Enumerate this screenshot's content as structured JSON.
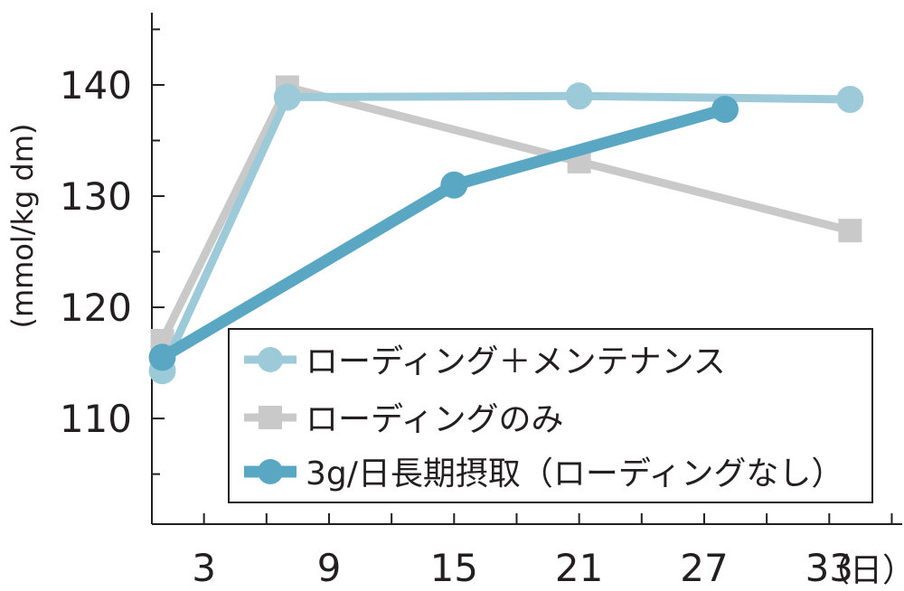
{
  "chart_data": {
    "type": "line",
    "title": "",
    "xlabel": "",
    "ylabel": "(mmol/kg dm)",
    "x_unit_label": "（日）",
    "x_ticks": [
      3,
      9,
      15,
      21,
      27,
      33
    ],
    "x_tick_labels": [
      "3",
      "9",
      "15",
      "21",
      "27",
      "33"
    ],
    "y_ticks": [
      110,
      120,
      130,
      140
    ],
    "y_tick_labels": [
      "110",
      "120",
      "130",
      "140"
    ],
    "xlim": [
      0.5,
      36.5
    ],
    "ylim": [
      100.5,
      146.5
    ],
    "grid": false,
    "legend_position": "inside-lower-right",
    "series": [
      {
        "name": "ローディング＋メンテナンス",
        "marker": "circle",
        "color": "#9ccad9",
        "line_width": 9,
        "x": [
          1,
          7,
          21,
          34
        ],
        "y": [
          114.3,
          138.9,
          139.0,
          138.7
        ]
      },
      {
        "name": "ローディングのみ",
        "marker": "square",
        "color": "#c9c9c9",
        "line_width": 9,
        "x": [
          1,
          7,
          21,
          34
        ],
        "y": [
          117.0,
          139.8,
          133.1,
          126.9
        ]
      },
      {
        "name": "3g/日長期摂取（ローディングなし）",
        "marker": "circle",
        "color": "#5aa7c4",
        "line_width": 13,
        "x": [
          1,
          15,
          28
        ],
        "y": [
          115.5,
          131.0,
          137.8
        ]
      }
    ]
  }
}
